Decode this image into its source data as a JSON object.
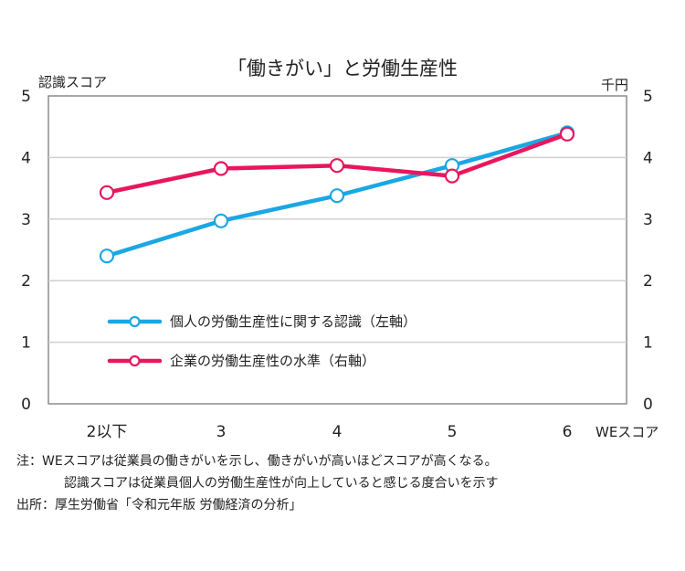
{
  "chart_data": {
    "type": "line",
    "title": "「働きがい」と労働生産性",
    "categories": [
      "2以下",
      "3",
      "4",
      "5",
      "6"
    ],
    "xlabel": "WEスコア",
    "ylabel_left": "認識スコア",
    "ylabel_right": "千円",
    "ylim": [
      0,
      5
    ],
    "yticks": [
      "0",
      "1",
      "2",
      "3",
      "4",
      "5"
    ],
    "grid": true,
    "legend_placement": "center-left",
    "series": [
      {
        "name": "個人の労働生産性に関する認識（左軸）",
        "axis": "left",
        "color": "#1aa7e4",
        "values": [
          2.4,
          2.97,
          3.38,
          3.87,
          4.4
        ]
      },
      {
        "name": "企業の労働生産性の水準（右軸）",
        "axis": "right",
        "color": "#e8175d",
        "values": [
          3.43,
          3.82,
          3.87,
          3.7,
          4.38
        ]
      }
    ]
  },
  "notes": [
    "注：WEスコアは従業員の働きがいを示し、働きがいが高いほどスコアが高くなる。",
    "認識スコアは従業員個人の労働生産性が向上していると感じる度合いを示す",
    "出所：厚生労働省「令和元年版 労働経済の分析」"
  ]
}
